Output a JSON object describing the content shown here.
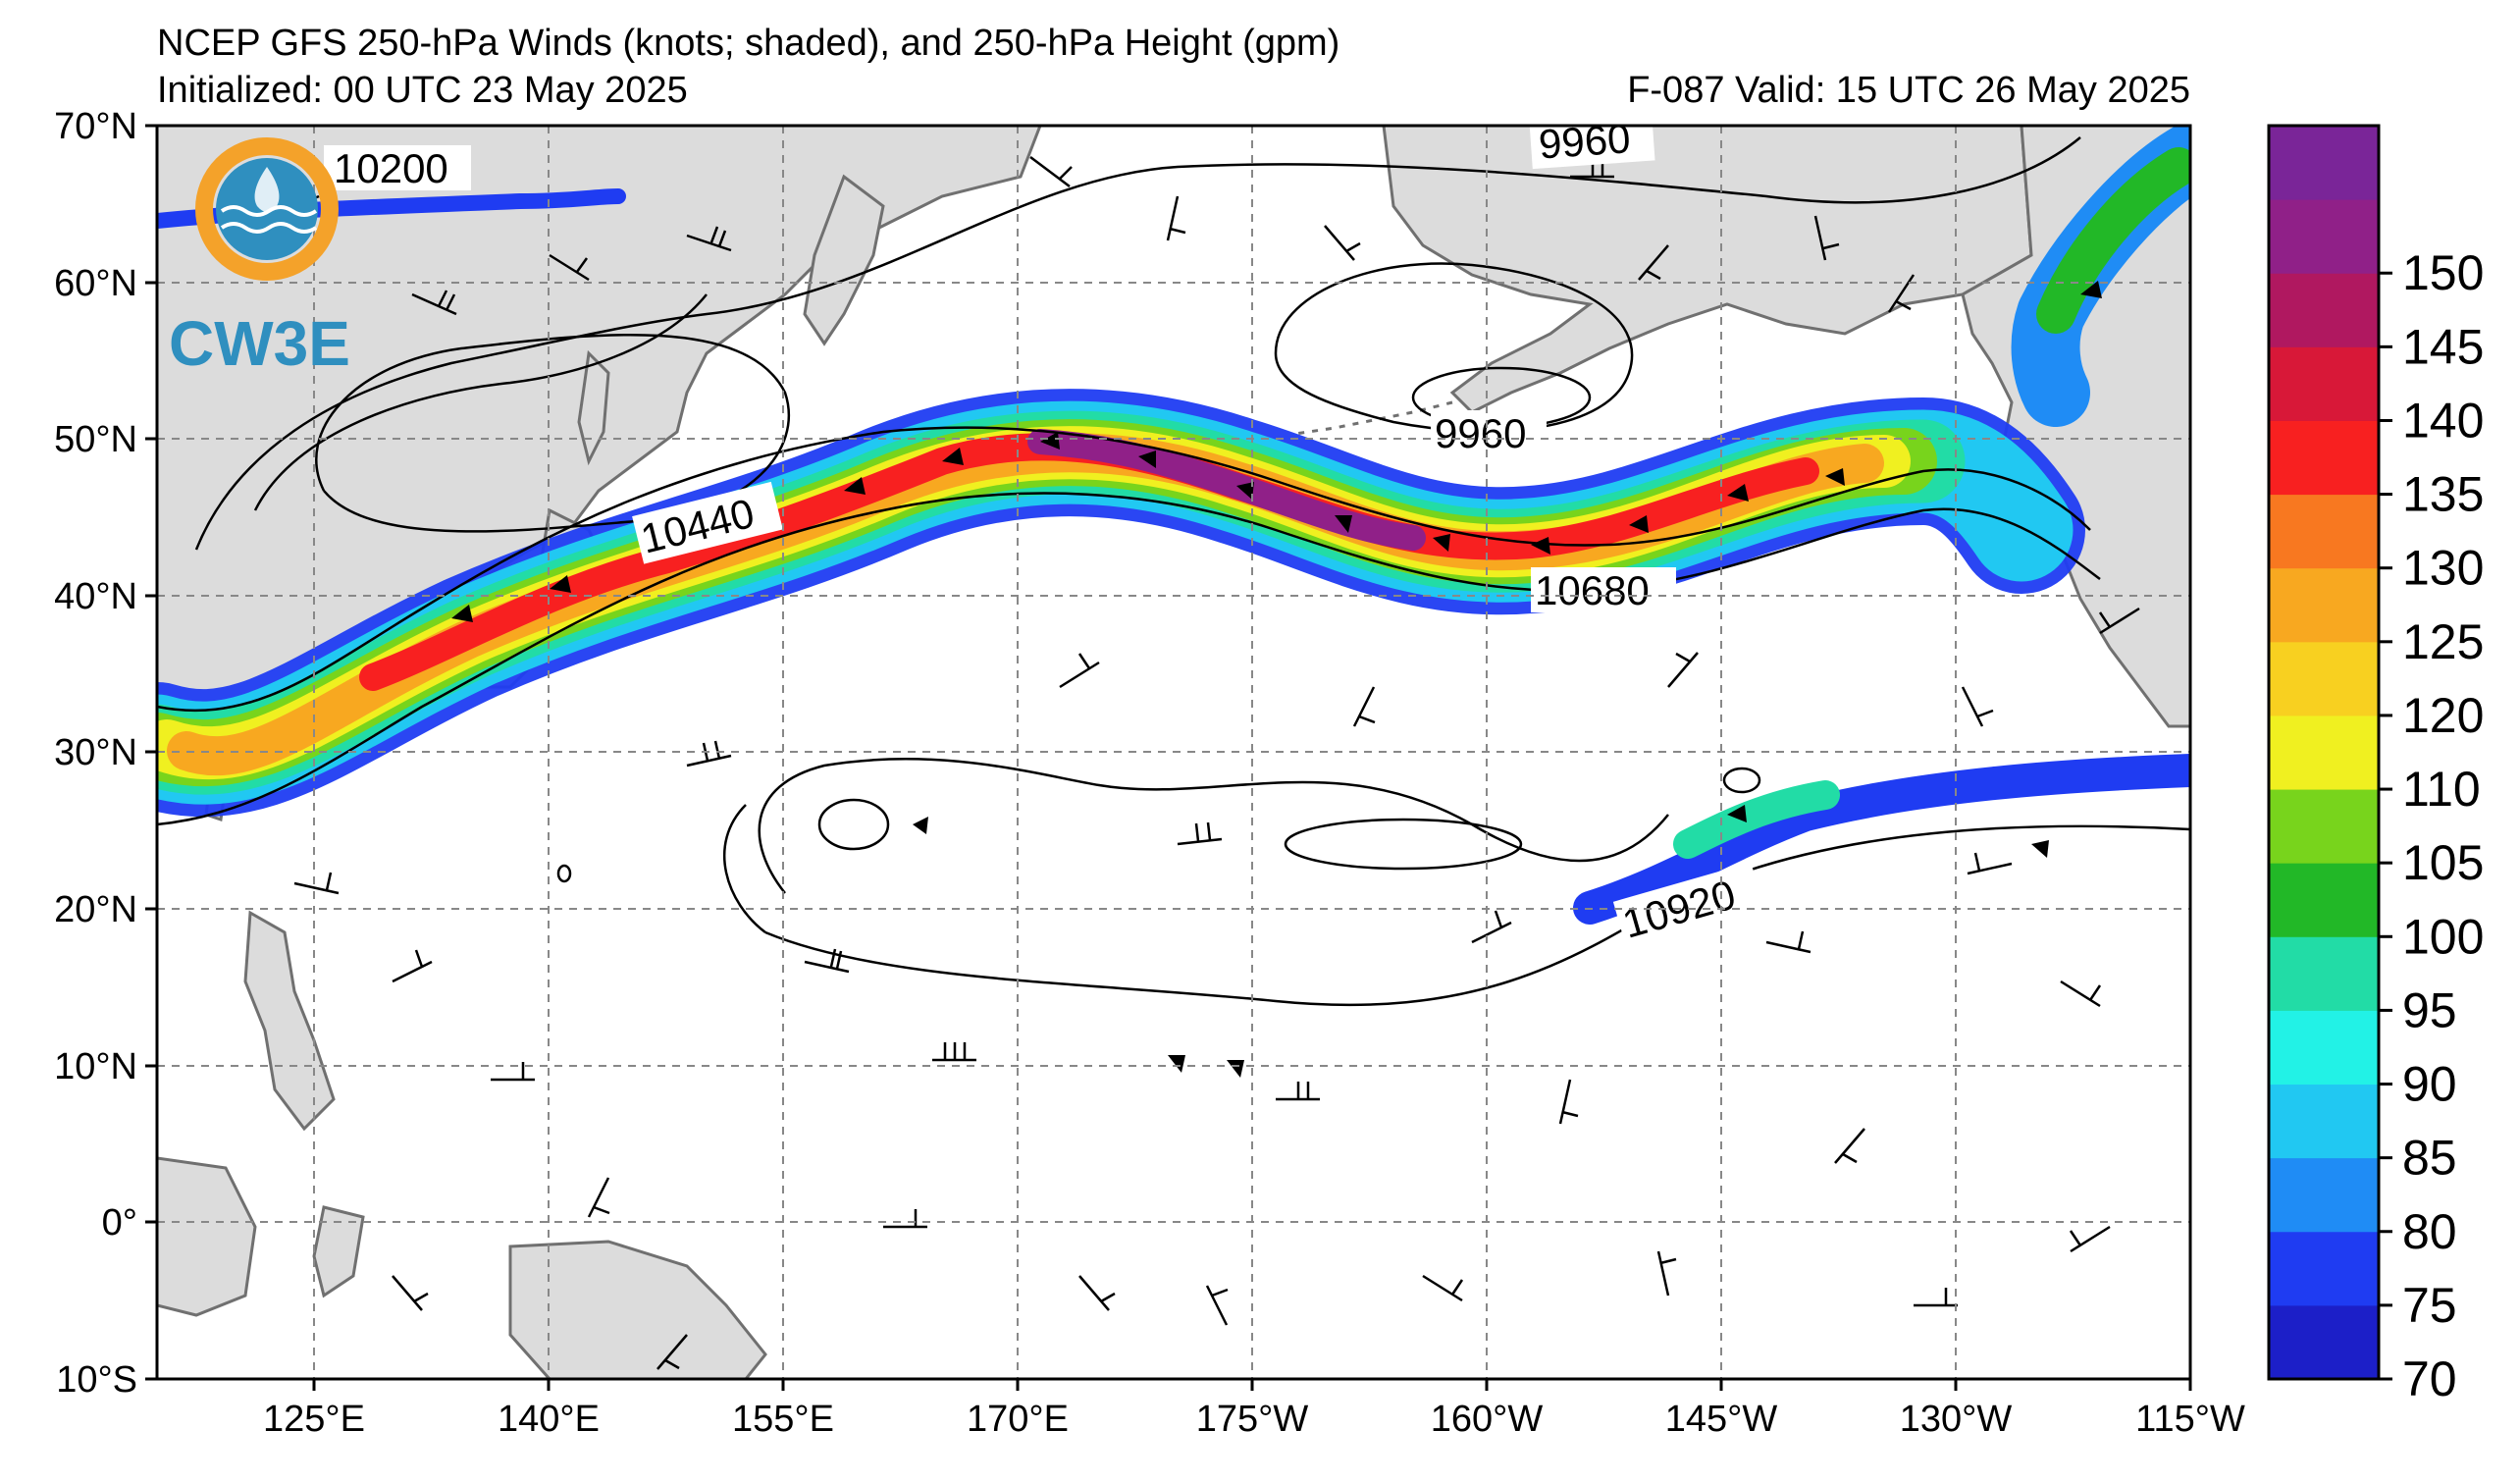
{
  "title": "NCEP GFS 250-hPa Winds (knots; shaded), and 250-hPa Height (gpm)",
  "initialized": "Initialized: 00 UTC 23 May 2025",
  "valid": "F-087  Valid: 15 UTC 26 May 2025",
  "logo_text": "CW3E",
  "lon_labels": [
    "125°E",
    "140°E",
    "155°E",
    "170°E",
    "175°W",
    "160°W",
    "145°W",
    "130°W",
    "115°W"
  ],
  "lat_labels": [
    "70°N",
    "60°N",
    "50°N",
    "40°N",
    "30°N",
    "20°N",
    "10°N",
    "0°",
    "10°S"
  ],
  "contour_labels": [
    "10200",
    "9960",
    "9960",
    "10440",
    "10680",
    "10920"
  ],
  "colorbar": {
    "levels": [
      "70",
      "75",
      "80",
      "85",
      "90",
      "95",
      "100",
      "105",
      "110",
      "120",
      "125",
      "130",
      "135",
      "140",
      "145",
      "150"
    ],
    "colors": [
      "#1c1fc8",
      "#1f3cf2",
      "#1f8cf5",
      "#21c8f2",
      "#22f2e6",
      "#22dca6",
      "#22b827",
      "#78d41c",
      "#f0f020",
      "#f8d020",
      "#f8a820",
      "#f87820",
      "#f82020",
      "#d81838",
      "#b01860",
      "#902088",
      "#7a2598"
    ]
  },
  "colors": {
    "land": "#dcdcdc",
    "coast": "#707070",
    "grid": "#888888"
  }
}
